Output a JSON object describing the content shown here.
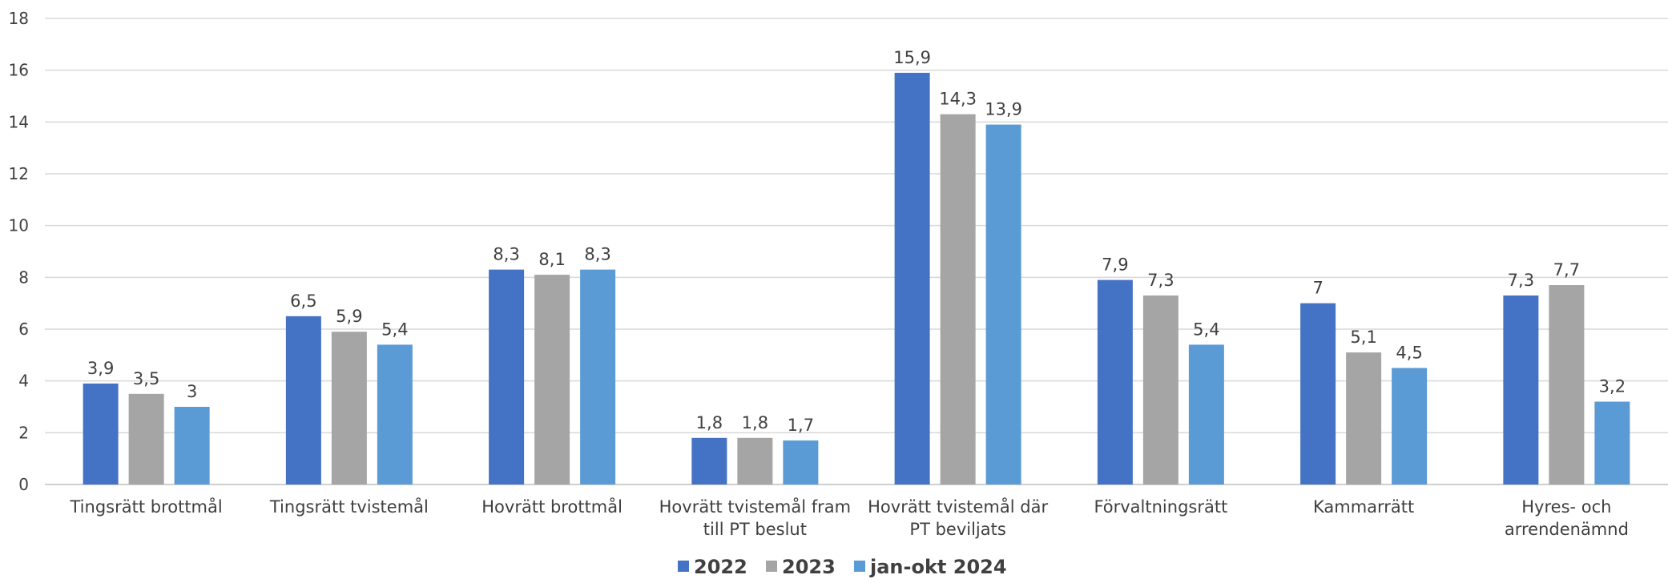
{
  "chart_data": {
    "type": "bar",
    "title": "",
    "xlabel": "",
    "ylabel": "",
    "ylim": [
      0,
      18
    ],
    "yticks": [
      0,
      2,
      4,
      6,
      8,
      10,
      12,
      14,
      16,
      18
    ],
    "grid": true,
    "legend_position": "bottom",
    "categories": [
      [
        "Tingsrätt brottmål"
      ],
      [
        "Tingsrätt tvistemål"
      ],
      [
        "Hovrätt brottmål"
      ],
      [
        "Hovrätt tvistemål fram",
        "till PT beslut"
      ],
      [
        "Hovrätt tvistemål där",
        "PT beviljats"
      ],
      [
        "Förvaltningsrätt"
      ],
      [
        "Kammarrätt"
      ],
      [
        "Hyres- och",
        "arrendenämnd"
      ]
    ],
    "series": [
      {
        "name": "2022",
        "color": "#4472C4",
        "values": [
          3.9,
          6.5,
          8.3,
          1.8,
          15.9,
          7.9,
          7,
          7.3
        ],
        "labels": [
          "3,9",
          "6,5",
          "8,3",
          "1,8",
          "15,9",
          "7,9",
          "7",
          "7,3"
        ]
      },
      {
        "name": "2023",
        "color": "#A5A5A5",
        "values": [
          3.5,
          5.9,
          8.1,
          1.8,
          14.3,
          7.3,
          5.1,
          7.7
        ],
        "labels": [
          "3,5",
          "5,9",
          "8,1",
          "1,8",
          "14,3",
          "7,3",
          "5,1",
          "7,7"
        ]
      },
      {
        "name": "jan-okt 2024",
        "color": "#5B9BD5",
        "values": [
          3,
          5.4,
          8.3,
          1.7,
          13.9,
          5.4,
          4.5,
          3.2
        ],
        "labels": [
          "3",
          "5,4",
          "8,3",
          "1,7",
          "13,9",
          "5,4",
          "4,5",
          "3,2"
        ]
      }
    ]
  }
}
